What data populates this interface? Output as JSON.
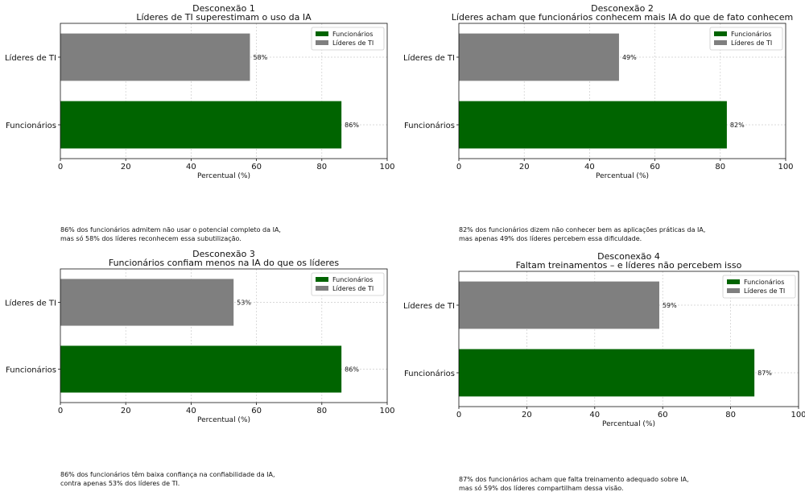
{
  "chart_data": [
    {
      "type": "bar",
      "orientation": "horizontal",
      "title": "Desconexão 1",
      "subtitle": "Líderes de TI superestimam o uso da IA",
      "xlabel": "Percentual (%)",
      "ylabel": "",
      "xlim": [
        0,
        100
      ],
      "xticks": [
        "0",
        "20",
        "40",
        "60",
        "80",
        "100"
      ],
      "grid": true,
      "legend_placement": "top-right",
      "legend": [
        "Funcionários",
        "Líderes de TI"
      ],
      "categories": [
        "Líderes de TI",
        "Funcionários"
      ],
      "values": [
        58,
        86
      ],
      "value_labels": [
        "58%",
        "86%"
      ],
      "colors": [
        "#7f7f7f",
        "#006400"
      ],
      "caption": "86% dos funcionários admitem não usar o potencial completo da IA,\nmas só 58% dos líderes reconhecem essa subutilização."
    },
    {
      "type": "bar",
      "orientation": "horizontal",
      "title": "Desconexão 2",
      "subtitle": "Líderes acham que funcionários conhecem mais IA do que de fato conhecem",
      "xlabel": "Percentual (%)",
      "ylabel": "",
      "xlim": [
        0,
        100
      ],
      "xticks": [
        "0",
        "20",
        "40",
        "60",
        "80",
        "100"
      ],
      "grid": true,
      "legend_placement": "top-right",
      "legend": [
        "Funcionários",
        "Líderes de TI"
      ],
      "categories": [
        "Líderes de TI",
        "Funcionários"
      ],
      "values": [
        49,
        82
      ],
      "value_labels": [
        "49%",
        "82%"
      ],
      "colors": [
        "#7f7f7f",
        "#006400"
      ],
      "caption": "82% dos funcionários dizem não conhecer bem as aplicações práticas da IA,\nmas apenas 49% dos líderes percebem essa dificuldade."
    },
    {
      "type": "bar",
      "orientation": "horizontal",
      "title": "Desconexão 3",
      "subtitle": "Funcionários confiam menos na IA do que os líderes",
      "xlabel": "Percentual (%)",
      "ylabel": "",
      "xlim": [
        0,
        100
      ],
      "xticks": [
        "0",
        "20",
        "40",
        "60",
        "80",
        "100"
      ],
      "grid": true,
      "legend_placement": "top-right",
      "legend": [
        "Funcionários",
        "Líderes de TI"
      ],
      "categories": [
        "Líderes de TI",
        "Funcionários"
      ],
      "values": [
        53,
        86
      ],
      "value_labels": [
        "53%",
        "86%"
      ],
      "colors": [
        "#7f7f7f",
        "#006400"
      ],
      "caption": "86% dos funcionários têm baixa confiança na confiabilidade da IA,\ncontra apenas 53% dos líderes de TI."
    },
    {
      "type": "bar",
      "orientation": "horizontal",
      "title": "Desconexão 4",
      "subtitle": "Faltam treinamentos – e líderes não percebem isso",
      "xlabel": "Percentual (%)",
      "ylabel": "",
      "xlim": [
        0,
        100
      ],
      "xticks": [
        "0",
        "20",
        "40",
        "60",
        "80",
        "100"
      ],
      "grid": true,
      "legend_placement": "top-right",
      "legend": [
        "Funcionários",
        "Líderes de TI"
      ],
      "categories": [
        "Líderes de TI",
        "Funcionários"
      ],
      "values": [
        59,
        87
      ],
      "value_labels": [
        "59%",
        "87%"
      ],
      "colors": [
        "#7f7f7f",
        "#006400"
      ],
      "caption": "87% dos funcionários acham que falta treinamento adequado sobre IA,\nmas só 59% dos líderes compartilham dessa visão."
    }
  ]
}
